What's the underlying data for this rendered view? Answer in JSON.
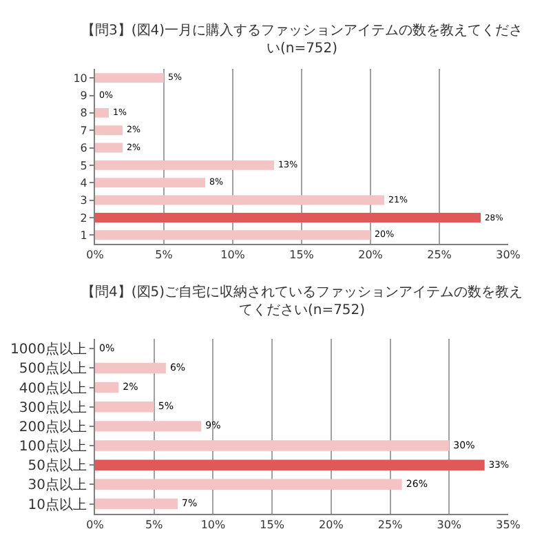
{
  "chart_data": [
    {
      "type": "bar",
      "orientation": "horizontal",
      "title": "【問3】(図4)一月に購入するファッションアイテムの数を教えてください(n=752)",
      "categories": [
        "10",
        "9",
        "8",
        "7",
        "6",
        "5",
        "4",
        "3",
        "2",
        "1"
      ],
      "values": [
        5,
        0,
        1,
        2,
        2,
        13,
        8,
        21,
        28,
        20
      ],
      "colors": [
        "#f4c4c4",
        "#f4c4c4",
        "#f4c4c4",
        "#f4c4c4",
        "#f4c4c4",
        "#f4c4c4",
        "#f4c4c4",
        "#f4c4c4",
        "#e05858",
        "#f4c4c4"
      ],
      "xlim": [
        0,
        30
      ],
      "xticks": [
        {
          "value": 0,
          "label": "0%"
        },
        {
          "value": 5,
          "label": "5%"
        },
        {
          "value": 10,
          "label": "10%"
        },
        {
          "value": 15,
          "label": "15%"
        },
        {
          "value": 20,
          "label": "20%"
        },
        {
          "value": 25,
          "label": "25%"
        },
        {
          "value": 30,
          "label": "30%"
        }
      ],
      "value_labels": [
        "5%",
        "0%",
        "1%",
        "2%",
        "2%",
        "13%",
        "8%",
        "21%",
        "28%",
        "20%"
      ],
      "grid": "x"
    },
    {
      "type": "bar",
      "orientation": "horizontal",
      "title": "【問4】(図5)ご自宅に収納されているファッションアイテムの数を教えてください(n=752)",
      "categories": [
        "1000点以上",
        "500点以上",
        "400点以上",
        "300点以上",
        "200点以上",
        "100点以上",
        "50点以上",
        "30点以上",
        "10点以上"
      ],
      "values": [
        0,
        6,
        2,
        5,
        9,
        30,
        33,
        26,
        7
      ],
      "colors": [
        "#f4c4c4",
        "#f4c4c4",
        "#f4c4c4",
        "#f4c4c4",
        "#f4c4c4",
        "#f4c4c4",
        "#e05858",
        "#f4c4c4",
        "#f4c4c4"
      ],
      "xlim": [
        0,
        35
      ],
      "xticks": [
        {
          "value": 0,
          "label": "0%"
        },
        {
          "value": 5,
          "label": "5%"
        },
        {
          "value": 10,
          "label": "10%"
        },
        {
          "value": 15,
          "label": "15%"
        },
        {
          "value": 20,
          "label": "20%"
        },
        {
          "value": 25,
          "label": "25%"
        },
        {
          "value": 30,
          "label": "30%"
        },
        {
          "value": 35,
          "label": "35%"
        }
      ],
      "value_labels": [
        "0%",
        "6%",
        "2%",
        "5%",
        "9%",
        "30%",
        "33%",
        "26%",
        "7%"
      ],
      "grid": "x"
    }
  ]
}
